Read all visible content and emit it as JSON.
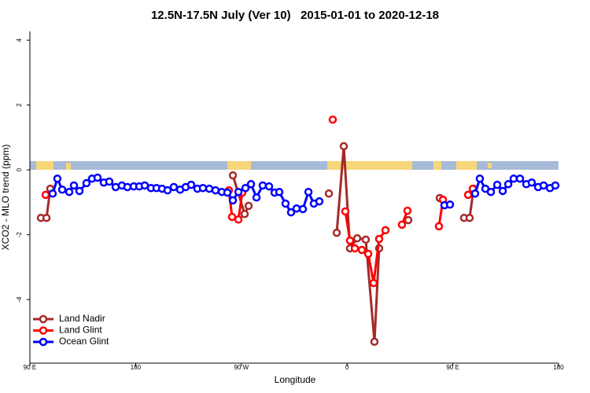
{
  "chart_data": {
    "type": "line",
    "title": "12.5N-17.5N July (Ver 10)   2015-01-01 to 2020-12-18",
    "x_label": "Longitude",
    "y_label": "XCO2 - MLO trend (ppm)",
    "xlim": [
      90,
      540
    ],
    "ylim": [
      -5.96,
      4.27
    ],
    "xticks": [
      {
        "value": 90,
        "label": "90 E"
      },
      180,
      {
        "value": 270,
        "label": "90 W"
      },
      {
        "value": 360,
        "label": "0"
      },
      {
        "value": 450,
        "label": "90 E"
      },
      {
        "value": 540,
        "label": "180"
      }
    ],
    "yticks": [
      -4,
      -2,
      0,
      2,
      4
    ],
    "legend": "bottom-left",
    "series": [
      {
        "name": "Land Nadir",
        "color": "#a52a2a",
        "x": [
          99.4,
          104.1,
          107.4,
          null,
          262.8,
          272.8,
          276.2,
          null,
          344.5,
          null,
          351.2,
          357.2,
          362.5,
          368.6,
          375.9,
          383.3,
          387.3,
          null,
          412.1,
          null,
          438.9,
          null,
          459.6,
          464.3,
          467.7
        ],
        "values": [
          -1.48,
          -1.48,
          -0.58,
          null,
          -0.17,
          -1.36,
          -1.11,
          null,
          -0.73,
          null,
          -1.94,
          0.73,
          -2.42,
          -2.11,
          -2.15,
          -5.3,
          -2.42,
          null,
          -1.55,
          null,
          -0.87,
          null,
          -1.48,
          -1.48,
          -0.58
        ]
      },
      {
        "name": "Land Glint",
        "color": "#ff0000",
        "x": [
          103.4,
          null,
          259.4,
          262.1,
          267.5,
          270.8,
          null,
          347.8,
          null,
          358.5,
          362.5,
          366.6,
          372.6,
          378.0,
          382.6,
          387.3,
          392.7,
          null,
          406.7,
          411.4,
          null,
          438.2,
          441.6,
          null,
          463.0,
          467.0
        ],
        "values": [
          -0.77,
          null,
          -0.63,
          -1.45,
          -1.53,
          -0.7,
          null,
          1.55,
          null,
          -1.28,
          -2.18,
          -2.42,
          -2.47,
          -2.59,
          -3.49,
          -2.13,
          -1.86,
          null,
          -1.69,
          -1.26,
          null,
          -1.74,
          -0.92,
          null,
          -0.77,
          -0.58
        ]
      },
      {
        "name": "Ocean Glint",
        "color": "#0000ff",
        "x": [
          109.4,
          113.4,
          117.5,
          123.5,
          127.5,
          132.2,
          138.2,
          142.9,
          147.6,
          152.9,
          157.6,
          163.0,
          168.3,
          173.0,
          178.4,
          183.1,
          187.8,
          193.1,
          197.8,
          202.5,
          207.2,
          212.5,
          217.9,
          222.6,
          227.3,
          232.6,
          237.3,
          242.7,
          248.0,
          253.4,
          258.1,
          262.8,
          267.5,
          273.5,
          278.2,
          282.9,
          288.2,
          293.6,
          298.3,
          302.3,
          307.6,
          312.3,
          317.0,
          322.4,
          327.1,
          331.7,
          336.4,
          null,
          442.9,
          447.6,
          null,
          469.0,
          473.0,
          477.7,
          482.4,
          487.8,
          492.5,
          497.2,
          501.8,
          507.2,
          512.6,
          517.2,
          522.6,
          527.3,
          532.7,
          537.3
        ],
        "values": [
          -0.73,
          -0.27,
          -0.61,
          -0.68,
          -0.48,
          -0.65,
          -0.41,
          -0.27,
          -0.24,
          -0.39,
          -0.36,
          -0.53,
          -0.48,
          -0.53,
          -0.51,
          -0.51,
          -0.48,
          -0.56,
          -0.56,
          -0.58,
          -0.63,
          -0.53,
          -0.61,
          -0.53,
          -0.46,
          -0.58,
          -0.56,
          -0.58,
          -0.63,
          -0.68,
          -0.7,
          -0.94,
          -0.68,
          -0.56,
          -0.44,
          -0.85,
          -0.48,
          -0.51,
          -0.7,
          -0.68,
          -1.04,
          -1.31,
          -1.19,
          -1.21,
          -0.68,
          -1.04,
          -0.97,
          null,
          -1.09,
          -1.07,
          null,
          -0.73,
          -0.27,
          -0.58,
          -0.68,
          -0.46,
          -0.65,
          -0.44,
          -0.27,
          -0.27,
          -0.44,
          -0.39,
          -0.53,
          -0.48,
          -0.56,
          -0.48
        ]
      }
    ]
  }
}
